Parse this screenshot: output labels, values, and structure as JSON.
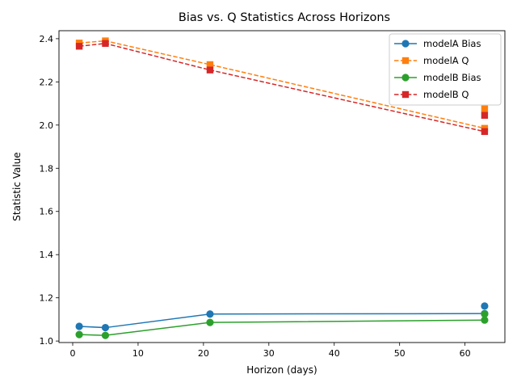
{
  "chart_data": {
    "type": "line",
    "title": "Bias vs. Q Statistics Across Horizons",
    "xlabel": "Horizon (days)",
    "ylabel": "Statistic Value",
    "xlim": [
      -2.1,
      66.1
    ],
    "ylim": [
      0.993,
      2.437
    ],
    "xticks": [
      0,
      10,
      20,
      30,
      40,
      50,
      60
    ],
    "yticks": [
      1.0,
      1.2,
      1.4,
      1.6,
      1.8,
      2.0,
      2.2,
      2.4
    ],
    "xtick_labels": [
      "0",
      "10",
      "20",
      "30",
      "40",
      "50",
      "60"
    ],
    "ytick_labels": [
      "1.0",
      "1.2",
      "1.4",
      "1.6",
      "1.8",
      "2.0",
      "2.2",
      "2.4"
    ],
    "grid": false,
    "legend_position": "top-right",
    "series": [
      {
        "name": "modelA Bias",
        "color": "#1f77b4",
        "linestyle": "solid",
        "marker": "circle",
        "line": [
          [
            1,
            1.068
          ],
          [
            5,
            1.062
          ],
          [
            21,
            1.125
          ],
          [
            63,
            1.127
          ]
        ],
        "points": [
          [
            1,
            1.068
          ],
          [
            5,
            1.062
          ],
          [
            21,
            1.125
          ],
          [
            63,
            1.127
          ],
          [
            63,
            1.162
          ]
        ]
      },
      {
        "name": "modelA Q",
        "color": "#ff7f0e",
        "linestyle": "dashed",
        "marker": "square",
        "line": [
          [
            1,
            2.38
          ],
          [
            5,
            2.39
          ],
          [
            21,
            2.28
          ],
          [
            63,
            1.985
          ]
        ],
        "points": [
          [
            1,
            2.38
          ],
          [
            5,
            2.39
          ],
          [
            21,
            2.28
          ],
          [
            63,
            1.985
          ],
          [
            63,
            2.075
          ]
        ]
      },
      {
        "name": "modelB Bias",
        "color": "#2ca02c",
        "linestyle": "solid",
        "marker": "circle",
        "line": [
          [
            1,
            1.03
          ],
          [
            5,
            1.026
          ],
          [
            21,
            1.086
          ],
          [
            63,
            1.097
          ]
        ],
        "points": [
          [
            1,
            1.03
          ],
          [
            5,
            1.026
          ],
          [
            21,
            1.086
          ],
          [
            63,
            1.097
          ],
          [
            63,
            1.125
          ]
        ]
      },
      {
        "name": "modelB Q",
        "color": "#d62728",
        "linestyle": "dashed",
        "marker": "square",
        "line": [
          [
            1,
            2.365
          ],
          [
            5,
            2.378
          ],
          [
            21,
            2.255
          ],
          [
            63,
            1.97
          ]
        ],
        "points": [
          [
            1,
            2.365
          ],
          [
            5,
            2.378
          ],
          [
            21,
            2.255
          ],
          [
            63,
            1.97
          ],
          [
            63,
            2.045
          ]
        ]
      }
    ]
  }
}
